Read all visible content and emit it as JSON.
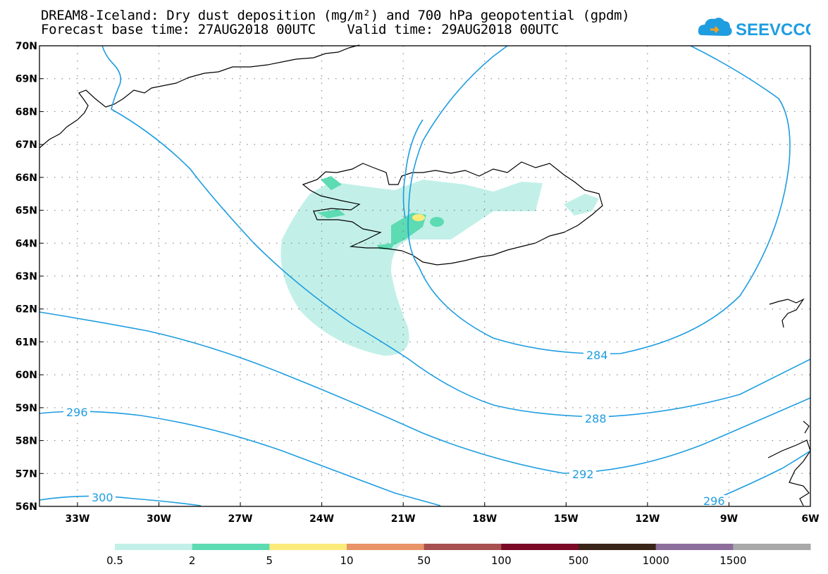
{
  "title_line1": "DREAM8-Iceland: Dry dust deposition (mg/m²) and 700 hPa geopotential (gpdm)",
  "title_line2": "Forecast base time: 27AUG2018 00UTC    Valid time: 29AUG2018 00UTC",
  "logo_text": "SEEVCCC",
  "lat_labels": [
    "70N",
    "69N",
    "68N",
    "67N",
    "66N",
    "65N",
    "64N",
    "63N",
    "62N",
    "61N",
    "60N",
    "59N",
    "58N",
    "57N",
    "56N"
  ],
  "lon_labels": [
    "33W",
    "30W",
    "27W",
    "24W",
    "21W",
    "18W",
    "15W",
    "12W",
    "9W",
    "6W"
  ],
  "contour_labels": {
    "c284": "284",
    "c288": "288",
    "c292": "292",
    "c296a": "296",
    "c296b": "296",
    "c300": "300"
  },
  "colorbar": {
    "labels": [
      "0.5",
      "2",
      "5",
      "10",
      "50",
      "100",
      "500",
      "1000",
      "1500"
    ],
    "colors": [
      "#c2f0e8",
      "#5ddbb2",
      "#fbeb7a",
      "#e89468",
      "#a75050",
      "#7a0a28",
      "#3a2418",
      "#8c6d9c",
      "#a9a9a9"
    ]
  },
  "colors": {
    "contour": "#1e9de0",
    "dust_light": "#c2f0e8",
    "dust_mid": "#5ddbb2",
    "dust_high": "#fbeb7a"
  }
}
